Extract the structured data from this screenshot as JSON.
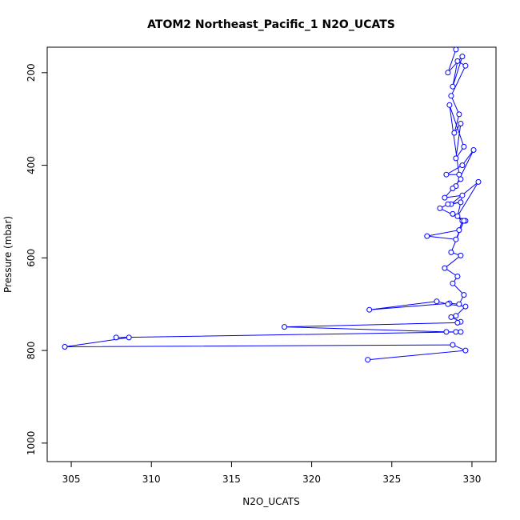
{
  "chart_data": {
    "type": "line",
    "title": "ATOM2 Northeast_Pacific_1 N2O_UCATS",
    "xlabel": "N2O_UCATS",
    "ylabel": "Pressure (mbar)",
    "xlim": [
      303.5,
      331.5
    ],
    "ylim": [
      1040,
      145
    ],
    "y_reversed": true,
    "grid": false,
    "legend": "none",
    "x_ticks": [
      305,
      310,
      315,
      320,
      325,
      330
    ],
    "y_ticks": [
      200,
      400,
      600,
      800,
      1000
    ],
    "marker": "open-circle",
    "color": "#0000ff",
    "series": [
      {
        "x": [
          329.0,
          328.5,
          329.4,
          328.8,
          329.1,
          329.6,
          328.7,
          329.2,
          328.9,
          329.3,
          329.0,
          329.5,
          328.6,
          329.2,
          328.4,
          329.4,
          330.1,
          329.0,
          328.8,
          329.3,
          328.3,
          329.4,
          329.1,
          330.4,
          328.7,
          329.3,
          328.5,
          328.0,
          329.6,
          328.8,
          329.4,
          329.2,
          327.2,
          329.0,
          329.5,
          328.7,
          329.3,
          328.3,
          329.1,
          328.8,
          329.5,
          329.2,
          328.6,
          323.6,
          327.8,
          328.5,
          329.6,
          329.0,
          328.7,
          329.3,
          329.1,
          318.3,
          328.4,
          329.0,
          329.3,
          307.8,
          308.6,
          304.6,
          328.8,
          329.6,
          323.5
        ],
        "y": [
          150,
          200,
          165,
          230,
          175,
          185,
          250,
          290,
          330,
          310,
          385,
          360,
          270,
          420,
          420,
          400,
          367,
          445,
          450,
          430,
          470,
          465,
          510,
          436,
          484,
          480,
          484,
          493,
          520,
          505,
          520,
          540,
          553,
          560,
          520,
          588,
          595,
          622,
          640,
          655,
          680,
          700,
          698,
          712,
          694,
          700,
          705,
          725,
          728,
          738,
          740,
          749,
          760,
          760,
          760,
          772,
          772,
          792,
          788,
          800,
          820
        ]
      }
    ]
  }
}
